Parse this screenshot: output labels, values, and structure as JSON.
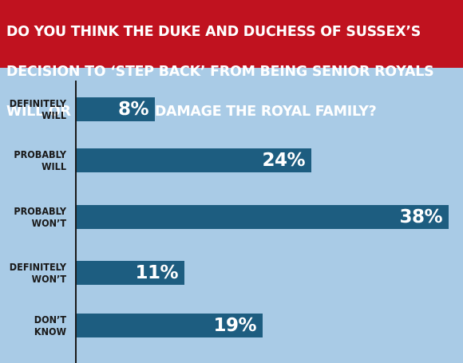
{
  "header": {
    "title_lines": [
      "DO YOU THINK THE DUKE AND DUCHESS OF SUSSEX’S",
      "DECISION TO ‘STEP BACK’ FROM BEING SENIOR ROYALS",
      "WILL OR WILL NOT DAMAGE THE ROYAL FAMILY?"
    ]
  },
  "colors": {
    "title_bg": "#c0121f",
    "background": "#a9cbe6",
    "bar": "#1d5d80",
    "bar_text": "#ffffff"
  },
  "chart_data": {
    "type": "bar",
    "orientation": "horizontal",
    "title": "DO YOU THINK THE DUKE AND DUCHESS OF SUSSEX’S DECISION TO ‘STEP BACK’ FROM BEING SENIOR ROYALS WILL OR WILL NOT DAMAGE THE ROYAL FAMILY?",
    "categories": [
      [
        "DEFINITELY",
        "WILL"
      ],
      [
        "PROBABLY",
        "WILL"
      ],
      [
        "PROBABLY",
        "WON’T"
      ],
      [
        "DEFINITELY",
        "WON’T"
      ],
      [
        "DON’T",
        "KNOW"
      ]
    ],
    "values": [
      8,
      24,
      38,
      11,
      19
    ],
    "value_labels": [
      "8%",
      "24%",
      "38%",
      "11%",
      "19%"
    ],
    "unit": "%",
    "xlim": [
      0,
      38
    ],
    "grid": false,
    "legend": "none"
  }
}
